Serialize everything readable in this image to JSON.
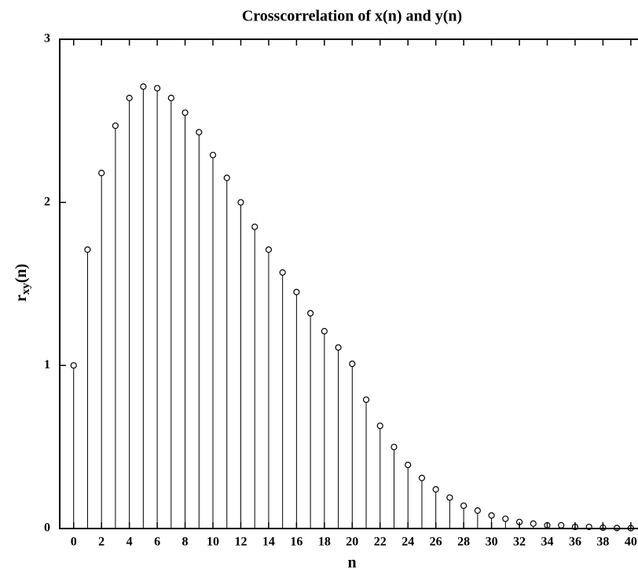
{
  "chart_data": {
    "type": "stem",
    "title": "Crosscorrelation of x(n) and y(n)",
    "xlabel": "n",
    "ylabel": [
      "r",
      "xy",
      "(n)"
    ],
    "x": [
      0,
      1,
      2,
      3,
      4,
      5,
      6,
      7,
      8,
      9,
      10,
      11,
      12,
      13,
      14,
      15,
      16,
      17,
      18,
      19,
      20,
      21,
      22,
      23,
      24,
      25,
      26,
      27,
      28,
      29,
      30,
      31,
      32,
      33,
      34,
      35,
      36,
      37,
      38,
      39,
      40
    ],
    "values": [
      1.0,
      1.71,
      2.18,
      2.47,
      2.64,
      2.71,
      2.7,
      2.64,
      2.55,
      2.43,
      2.29,
      2.15,
      2.0,
      1.85,
      1.71,
      1.57,
      1.45,
      1.32,
      1.21,
      1.11,
      1.01,
      0.79,
      0.63,
      0.5,
      0.39,
      0.31,
      0.24,
      0.19,
      0.14,
      0.11,
      0.08,
      0.06,
      0.04,
      0.03,
      0.02,
      0.02,
      0.01,
      0.01,
      0.005,
      0.003,
      0.002
    ],
    "color": "#000000",
    "xlim": [
      -1,
      41
    ],
    "ylim": [
      0,
      3
    ],
    "xticks": [
      0,
      2,
      4,
      6,
      8,
      10,
      12,
      14,
      16,
      18,
      20,
      22,
      24,
      26,
      28,
      30,
      32,
      34,
      36,
      38,
      40
    ],
    "yticks": [
      0,
      1,
      2,
      3
    ]
  }
}
